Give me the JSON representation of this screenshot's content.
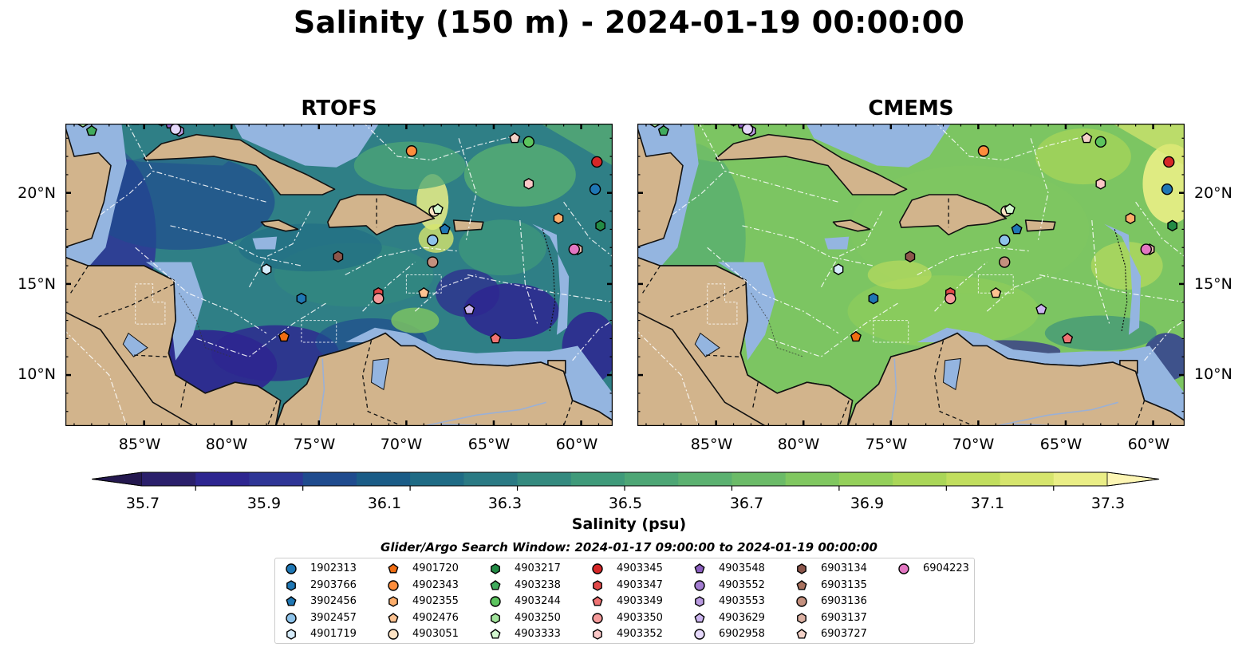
{
  "title": "Salinity (150 m) - 2024-01-19 00:00:00",
  "panels": [
    {
      "id": "rtofs",
      "title": "RTOFS"
    },
    {
      "id": "cmems",
      "title": "CMEMS"
    }
  ],
  "map_extent": {
    "lon_min": -89.5,
    "lon_max": -58.2,
    "lat_min": 7.2,
    "lat_max": 23.8
  },
  "lat_ticks": [
    {
      "value": 20,
      "label": "20°N"
    },
    {
      "value": 15,
      "label": "15°N"
    },
    {
      "value": 10,
      "label": "10°N"
    }
  ],
  "lon_ticks": [
    {
      "value": -85,
      "label": "85°W"
    },
    {
      "value": -80,
      "label": "80°W"
    },
    {
      "value": -75,
      "label": "75°W"
    },
    {
      "value": -70,
      "label": "70°W"
    },
    {
      "value": -65,
      "label": "65°W"
    },
    {
      "value": -60,
      "label": "60°W"
    }
  ],
  "colorbar": {
    "label": "Salinity (psu)",
    "min": 35.6,
    "max": 37.4,
    "tick_values": [
      35.7,
      35.9,
      36.1,
      36.3,
      36.5,
      36.7,
      36.9,
      37.1,
      37.3
    ],
    "tick_labels": [
      "35.7",
      "35.9",
      "36.1",
      "36.3",
      "36.5",
      "36.7",
      "36.9",
      "37.1",
      "37.3"
    ],
    "colors": [
      "#2a1f6b",
      "#2d2590",
      "#2e3596",
      "#1f4b8e",
      "#1a5c87",
      "#1f6b85",
      "#2a7a84",
      "#348a7f",
      "#3f9a7a",
      "#4da675",
      "#5bb170",
      "#6bbb68",
      "#80c760",
      "#94d05a",
      "#aad658",
      "#c1de5e",
      "#d6e56d",
      "#eaee86"
    ],
    "extend_low": "#24184f",
    "extend_high": "#fdf6b4"
  },
  "search_window": "Glider/Argo Search Window: 2024-01-17 09:00:00 to 2024-01-19 00:00:00",
  "legend": [
    {
      "id": "1902313",
      "color": "#1f77b4",
      "marker": "circle"
    },
    {
      "id": "2903766",
      "color": "#1f77b4",
      "marker": "hexagon"
    },
    {
      "id": "3902456",
      "color": "#1f77b4",
      "marker": "pentagon"
    },
    {
      "id": "3902457",
      "color": "#8ec3ea",
      "marker": "circle"
    },
    {
      "id": "4901719",
      "color": "#d6ecfb",
      "marker": "hexagon"
    },
    {
      "id": "4901720",
      "color": "#f06d12",
      "marker": "pentagon"
    },
    {
      "id": "4902343",
      "color": "#fd8d3c",
      "marker": "circle"
    },
    {
      "id": "4902355",
      "color": "#fdae6b",
      "marker": "hexagon"
    },
    {
      "id": "4902476",
      "color": "#fdc291",
      "marker": "pentagon"
    },
    {
      "id": "4903051",
      "color": "#fde3c4",
      "marker": "circle"
    },
    {
      "id": "4903217",
      "color": "#238b45",
      "marker": "hexagon"
    },
    {
      "id": "4903238",
      "color": "#41ab5d",
      "marker": "pentagon"
    },
    {
      "id": "4903244",
      "color": "#5cc45e",
      "marker": "circle"
    },
    {
      "id": "4903250",
      "color": "#a1e39b",
      "marker": "hexagon"
    },
    {
      "id": "4903333",
      "color": "#d3f7cf",
      "marker": "pentagon"
    },
    {
      "id": "4903345",
      "color": "#d62728",
      "marker": "circle"
    },
    {
      "id": "4903347",
      "color": "#e34a4a",
      "marker": "hexagon"
    },
    {
      "id": "4903349",
      "color": "#ef7373",
      "marker": "pentagon"
    },
    {
      "id": "4903350",
      "color": "#f59a9a",
      "marker": "circle"
    },
    {
      "id": "4903352",
      "color": "#fbc7c7",
      "marker": "hexagon"
    },
    {
      "id": "4903548",
      "color": "#8b5fbf",
      "marker": "pentagon"
    },
    {
      "id": "4903552",
      "color": "#a37dd1",
      "marker": "circle"
    },
    {
      "id": "4903553",
      "color": "#b99ae0",
      "marker": "hexagon"
    },
    {
      "id": "4903629",
      "color": "#cbb4ef",
      "marker": "pentagon"
    },
    {
      "id": "6902958",
      "color": "#e6d9fb",
      "marker": "circle"
    },
    {
      "id": "6903134",
      "color": "#8c564b",
      "marker": "hexagon"
    },
    {
      "id": "6903135",
      "color": "#a9725f",
      "marker": "pentagon"
    },
    {
      "id": "6903136",
      "color": "#c4907e",
      "marker": "circle"
    },
    {
      "id": "6903137",
      "color": "#dcb1a3",
      "marker": "hexagon"
    },
    {
      "id": "6903727",
      "color": "#f3d2c8",
      "marker": "pentagon"
    },
    {
      "id": "6904223",
      "color": "#e377c2",
      "marker": "circle"
    }
  ],
  "floats": [
    {
      "id": "1902313",
      "lon": -59.2,
      "lat": 20.2
    },
    {
      "id": "2903766",
      "lon": -76.0,
      "lat": 14.2
    },
    {
      "id": "3902456",
      "lon": -67.8,
      "lat": 18.0
    },
    {
      "id": "3902457",
      "lon": -68.5,
      "lat": 17.4
    },
    {
      "id": "4901719",
      "lon": -78.0,
      "lat": 15.8
    },
    {
      "id": "4901720",
      "lon": -77.0,
      "lat": 12.1
    },
    {
      "id": "4902343",
      "lon": -69.7,
      "lat": 22.3
    },
    {
      "id": "4902355",
      "lon": -61.3,
      "lat": 18.6
    },
    {
      "id": "4902476",
      "lon": -69.0,
      "lat": 14.5
    },
    {
      "id": "4903051",
      "lon": -68.4,
      "lat": 19.0
    },
    {
      "id": "4903217",
      "lon": -58.9,
      "lat": 18.2
    },
    {
      "id": "4903238",
      "lon": -88.0,
      "lat": 23.4
    },
    {
      "id": "4903244",
      "lon": -63.0,
      "lat": 22.8
    },
    {
      "id": "4903250",
      "lon": -88.5,
      "lat": 23.9
    },
    {
      "id": "4903333",
      "lon": -68.2,
      "lat": 19.1
    },
    {
      "id": "4903345",
      "lon": -59.1,
      "lat": 21.7
    },
    {
      "id": "4903347",
      "lon": -71.6,
      "lat": 14.5
    },
    {
      "id": "4903349",
      "lon": -64.9,
      "lat": 12.0
    },
    {
      "id": "4903350",
      "lon": -71.6,
      "lat": 14.2
    },
    {
      "id": "4903352",
      "lon": -63.0,
      "lat": 20.5
    },
    {
      "id": "4903548",
      "lon": -83.5,
      "lat": 23.8
    },
    {
      "id": "4903552",
      "lon": -84.0,
      "lat": 24.0
    },
    {
      "id": "4903553",
      "lon": -83.0,
      "lat": 23.4
    },
    {
      "id": "4903629",
      "lon": -66.4,
      "lat": 13.6
    },
    {
      "id": "6902958",
      "lon": -83.2,
      "lat": 23.5
    },
    {
      "id": "6903134",
      "lon": -73.9,
      "lat": 16.5
    },
    {
      "id": "6903135",
      "lon": -85.5,
      "lat": 24.0
    },
    {
      "id": "6903136",
      "lon": -68.5,
      "lat": 16.2
    },
    {
      "id": "6903137",
      "lon": -60.2,
      "lat": 16.9
    },
    {
      "id": "6903727",
      "lon": -63.8,
      "lat": 23.0
    },
    {
      "id": "6904223",
      "lon": -60.4,
      "lat": 16.9
    }
  ]
}
